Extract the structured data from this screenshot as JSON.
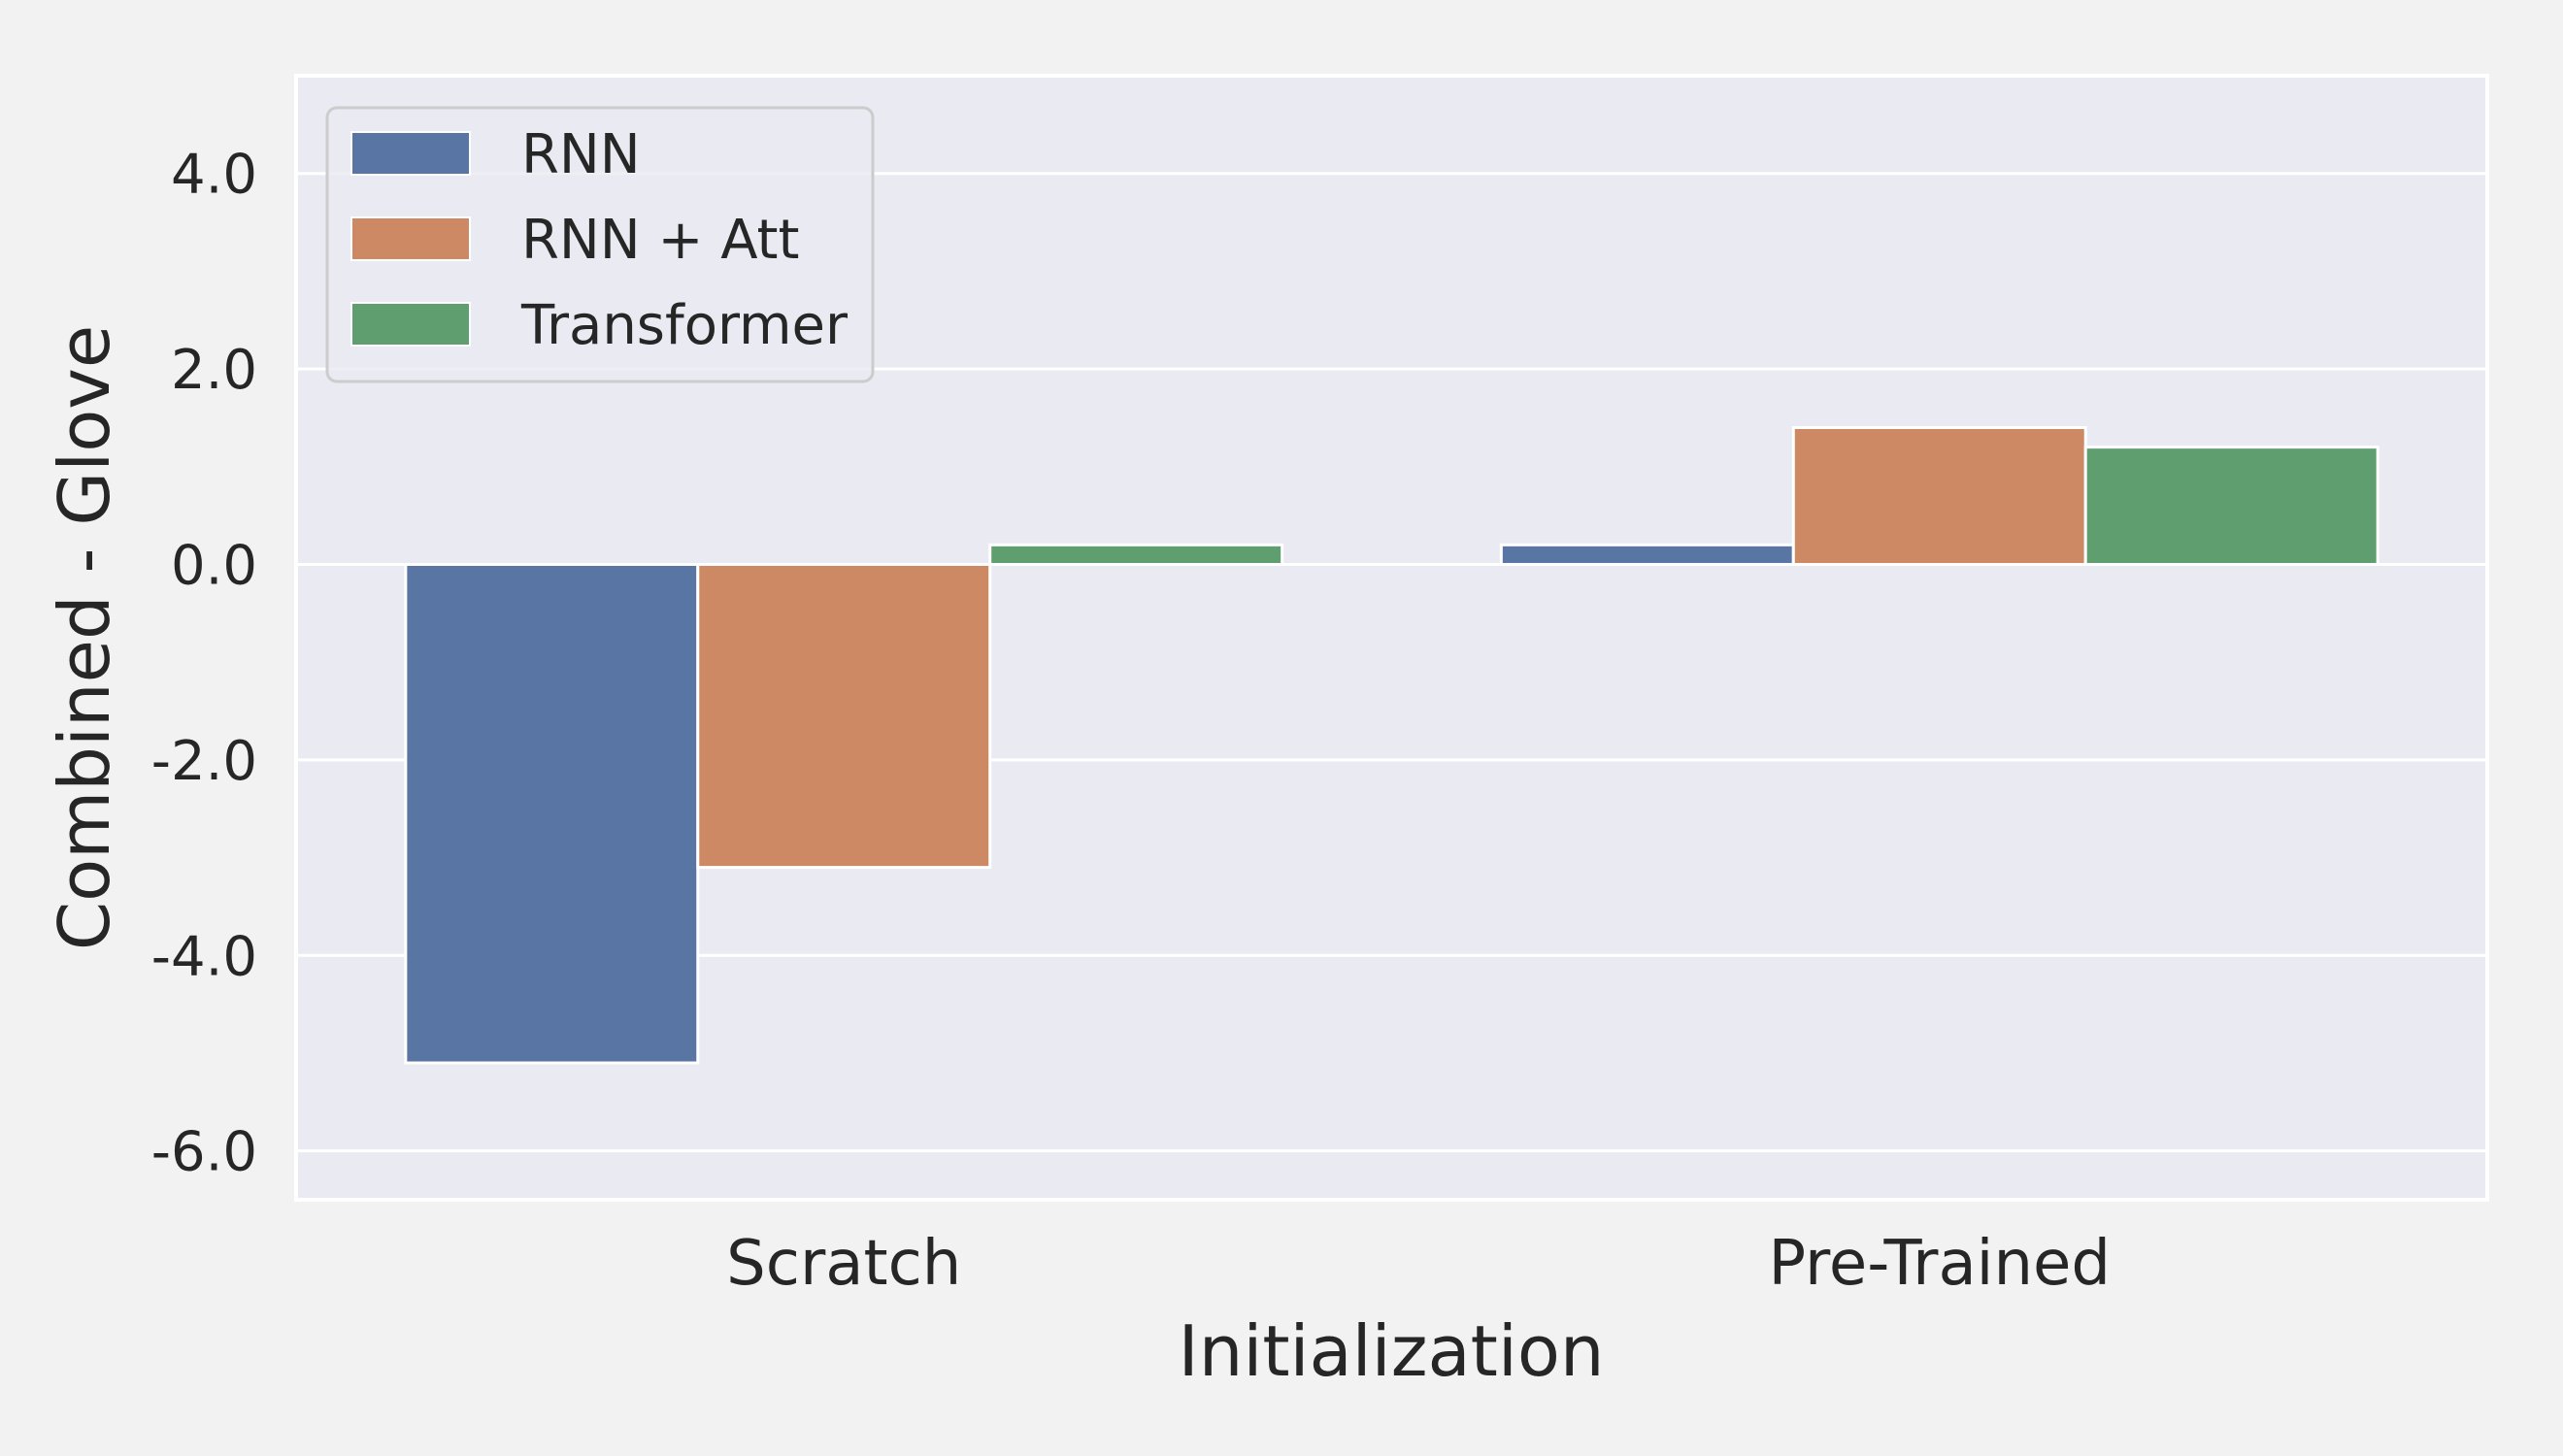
{
  "chart_data": {
    "type": "bar",
    "categories": [
      "Scratch",
      "Pre-Trained"
    ],
    "series": [
      {
        "name": "RNN",
        "values": [
          -5.1,
          0.2
        ],
        "color": "#5975a4"
      },
      {
        "name": "RNN + Att",
        "values": [
          -3.1,
          1.4
        ],
        "color": "#cc8963"
      },
      {
        "name": "Transformer",
        "values": [
          0.2,
          1.2
        ],
        "color": "#5f9e6e"
      }
    ],
    "xlabel": "Initialization",
    "ylabel": "Combined - Glove",
    "ylim": [
      -6.5,
      5.0
    ],
    "yticks": [
      -6.0,
      -4.0,
      -2.0,
      0.0,
      2.0,
      4.0
    ],
    "ytick_labels": [
      "-6.0",
      "-4.0",
      "-2.0",
      "0.0",
      "2.0",
      "4.0"
    ],
    "grid": true,
    "legend_position": "top-left",
    "background_color": "#eaeaf2"
  }
}
